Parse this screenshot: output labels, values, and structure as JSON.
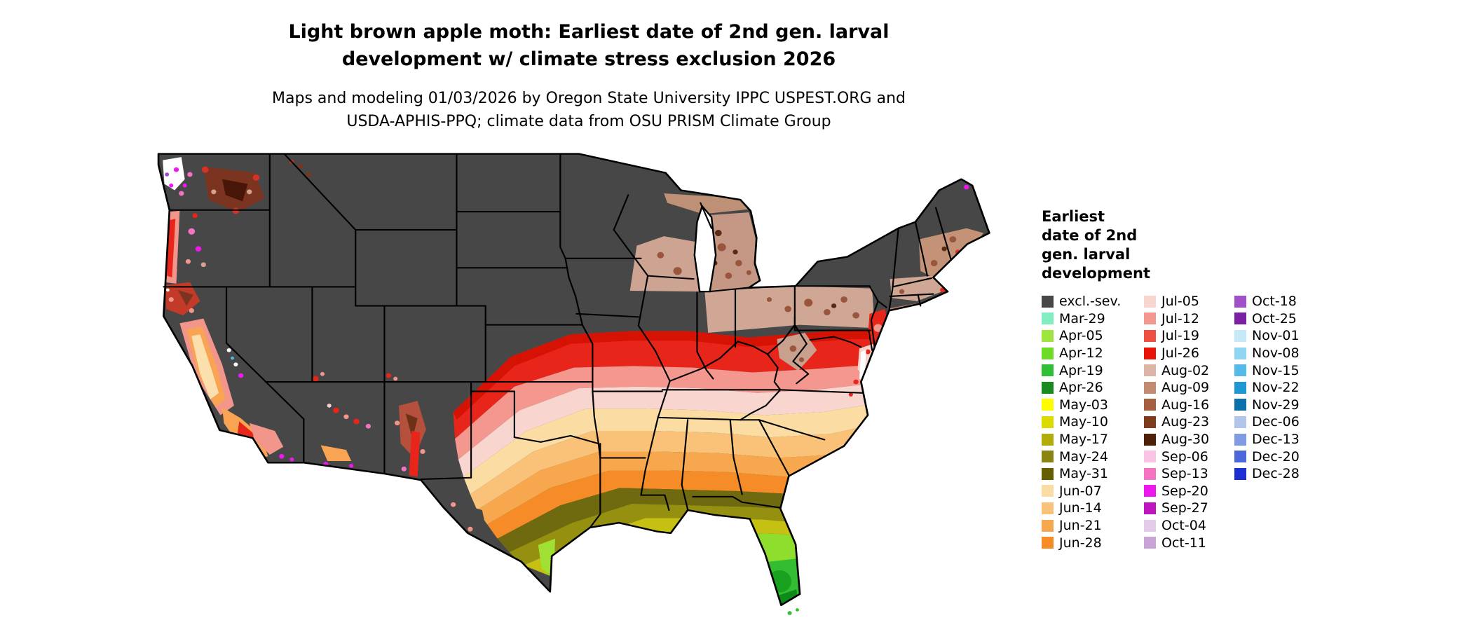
{
  "header": {
    "title_lines": [
      "Light brown apple moth: Earliest date of 2nd gen. larval",
      "development w/ climate stress exclusion 2026"
    ],
    "subtitle_lines": [
      "Maps and modeling 01/03/2026 by Oregon State University IPPC USPEST.ORG and",
      "USDA-APHIS-PPQ; climate data from OSU PRISM Climate Group"
    ]
  },
  "legend": {
    "title_lines": [
      "Earliest",
      "date of 2nd",
      "gen. larval",
      "development"
    ],
    "columns": [
      [
        {
          "label": "excl.-sev.",
          "color": "#474747"
        },
        {
          "label": "Mar-29",
          "color": "#80EEC0"
        },
        {
          "label": "Apr-05",
          "color": "#9FE53F"
        },
        {
          "label": "Apr-12",
          "color": "#6EDC26"
        },
        {
          "label": "Apr-19",
          "color": "#30C036"
        },
        {
          "label": "Apr-26",
          "color": "#188C20"
        },
        {
          "label": "May-03",
          "color": "#FDFD00"
        },
        {
          "label": "May-10",
          "color": "#DBDB00"
        },
        {
          "label": "May-17",
          "color": "#B2AC08"
        },
        {
          "label": "May-24",
          "color": "#8B8410"
        },
        {
          "label": "May-31",
          "color": "#655E00"
        },
        {
          "label": "Jun-07",
          "color": "#FBDCA2"
        },
        {
          "label": "Jun-14",
          "color": "#F9C278"
        },
        {
          "label": "Jun-21",
          "color": "#F7A84F"
        },
        {
          "label": "Jun-28",
          "color": "#F58C28"
        }
      ],
      [
        {
          "label": "Jul-05",
          "color": "#F9D5CF"
        },
        {
          "label": "Jul-12",
          "color": "#F4978E"
        },
        {
          "label": "Jul-19",
          "color": "#EF4F41"
        },
        {
          "label": "Jul-26",
          "color": "#E81507"
        },
        {
          "label": "Aug-02",
          "color": "#DBB4A6"
        },
        {
          "label": "Aug-09",
          "color": "#C28B72"
        },
        {
          "label": "Aug-16",
          "color": "#A55E40"
        },
        {
          "label": "Aug-23",
          "color": "#7D3B1C"
        },
        {
          "label": "Aug-30",
          "color": "#4E2008"
        },
        {
          "label": "Sep-06",
          "color": "#FAC2E5"
        },
        {
          "label": "Sep-13",
          "color": "#F673C4"
        },
        {
          "label": "Sep-20",
          "color": "#EE18EE"
        },
        {
          "label": "Sep-27",
          "color": "#C013C0"
        },
        {
          "label": "Oct-04",
          "color": "#E2CCE9"
        },
        {
          "label": "Oct-11",
          "color": "#C9A3D8"
        }
      ],
      [
        {
          "label": "Oct-18",
          "color": "#A050C8"
        },
        {
          "label": "Oct-25",
          "color": "#7D1FA5"
        },
        {
          "label": "Nov-01",
          "color": "#C5E9F9"
        },
        {
          "label": "Nov-08",
          "color": "#90D5F2"
        },
        {
          "label": "Nov-15",
          "color": "#55BAEA"
        },
        {
          "label": "Nov-22",
          "color": "#1F97D5"
        },
        {
          "label": "Nov-29",
          "color": "#0A71AC"
        },
        {
          "label": "Dec-06",
          "color": "#B1C6EA"
        },
        {
          "label": "Dec-13",
          "color": "#7F9BE2"
        },
        {
          "label": "Dec-20",
          "color": "#4B67DB"
        },
        {
          "label": "Dec-28",
          "color": "#1B2FD2"
        }
      ]
    ]
  },
  "colors": {
    "background": "#FFFFFF",
    "map_excluded": "#474747",
    "state_border": "#000000"
  }
}
